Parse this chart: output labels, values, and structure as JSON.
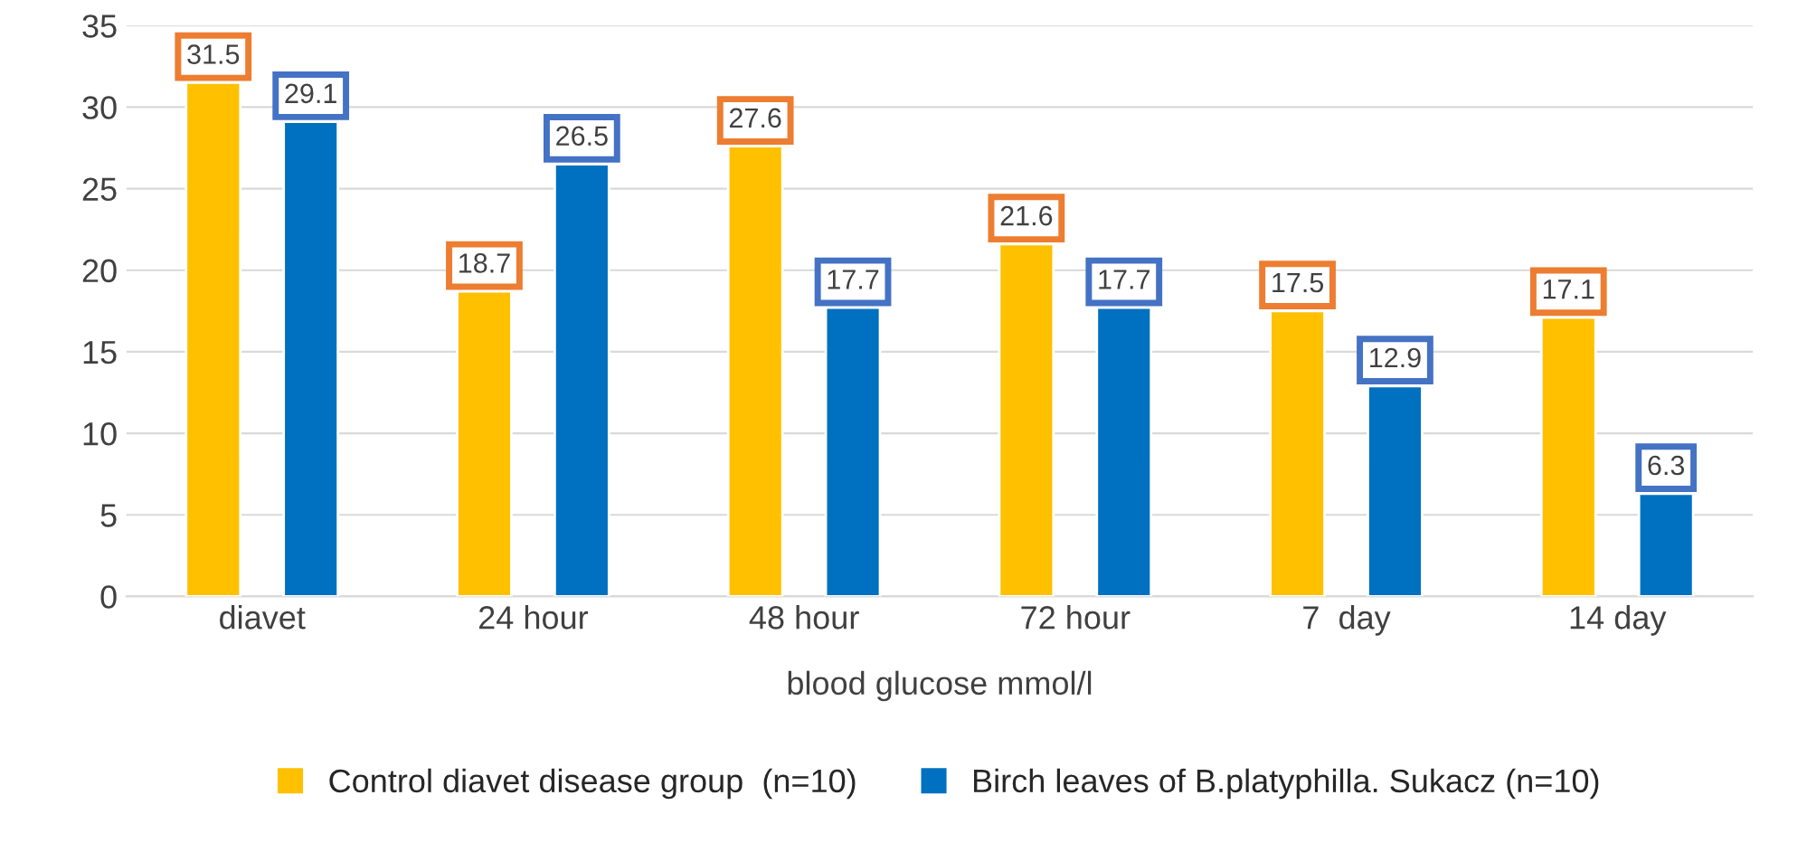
{
  "chart_data": {
    "type": "bar",
    "categories": [
      "diavet",
      "24 hour",
      "48 hour",
      "72 hour",
      "7  day",
      "14 day"
    ],
    "xlabel": "blood glucose mmol/l",
    "series": [
      {
        "name": "Control diavet disease group  (n=10)",
        "color": "#ffc000",
        "values": [
          31.5,
          18.7,
          27.6,
          21.6,
          17.5,
          17.1
        ]
      },
      {
        "name": "Birch leaves of B.platyphilla. Sukacz (n=10)",
        "color": "#0070c0",
        "values": [
          29.1,
          26.5,
          17.7,
          17.7,
          12.9,
          6.3
        ]
      }
    ],
    "ylim": [
      0,
      35
    ],
    "yticks": [
      0,
      5,
      10,
      15,
      20,
      25,
      30,
      35
    ],
    "grid": "y",
    "legend": "bottom",
    "data_labels": true
  }
}
